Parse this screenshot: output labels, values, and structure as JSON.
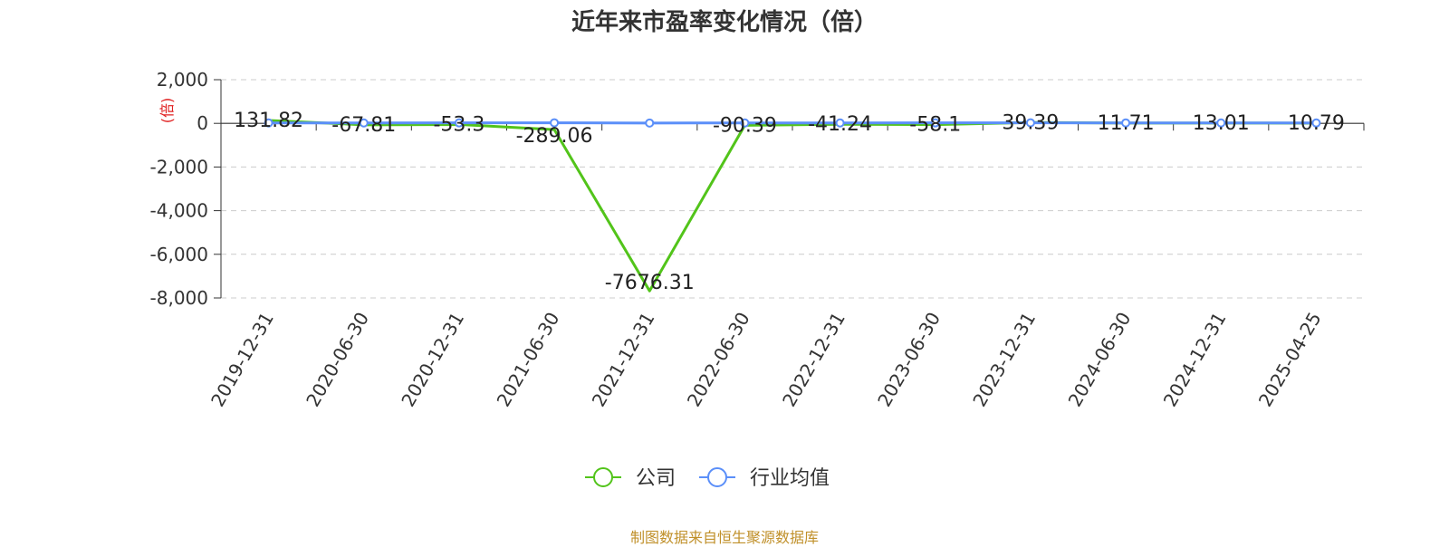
{
  "chart_data": {
    "type": "line",
    "title": "近年来市盈率变化情况（倍）",
    "ylabel": "(倍)",
    "categories": [
      "2019-12-31",
      "2020-06-30",
      "2020-12-31",
      "2021-06-30",
      "2021-12-31",
      "2022-06-30",
      "2022-12-31",
      "2023-06-30",
      "2023-12-31",
      "2024-06-30",
      "2024-12-31",
      "2025-04-25"
    ],
    "series": [
      {
        "name": "公司",
        "color": "#52c41a",
        "values": [
          131.82,
          -67.81,
          -53.3,
          -289.06,
          -7676.31,
          -90.39,
          -41.24,
          -58.1,
          39.39,
          11.71,
          13.01,
          10.79
        ],
        "labels": [
          "131.82",
          "-67.81",
          "-53.3",
          "-289.06",
          "-7676.31",
          "-90.39",
          "-41.24",
          "-58.1",
          "39.39",
          "11.71",
          "13.01",
          "10.79"
        ]
      },
      {
        "name": "行业均值",
        "color": "#5b8ff9",
        "values": [
          20,
          18,
          22,
          25,
          15,
          18,
          20,
          22,
          25,
          20,
          18,
          17
        ]
      }
    ],
    "yticks": [
      2000,
      0,
      -2000,
      -4000,
      -6000,
      -8000
    ],
    "ytick_labels": [
      "2,000",
      "0",
      "-2,000",
      "-4,000",
      "-6,000",
      "-8,000"
    ],
    "ylim": [
      -8000,
      2000
    ],
    "grid": true,
    "legend": "bottom-center"
  },
  "footer": "制图数据来自恒生聚源数据库"
}
